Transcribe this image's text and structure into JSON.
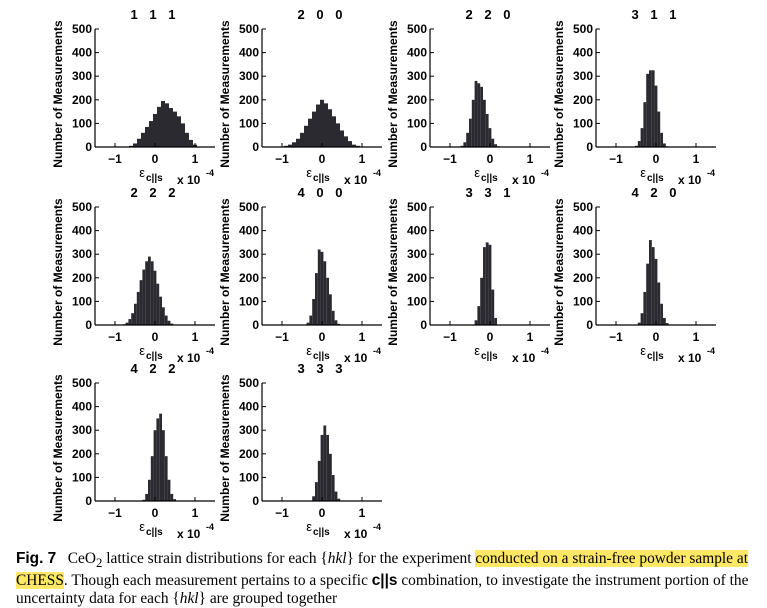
{
  "figure": {
    "label": "Fig. 7",
    "caption": {
      "part1": "CeO",
      "sub": "2",
      "part2": " lattice strain distributions for each {",
      "hkl1": "hkl",
      "part3": "} for the experiment ",
      "highlight": "conducted on a strain-free powder sample at CHESS",
      "part4": ". Though each measurement pertains to a specific ",
      "cs": "c||s",
      "part5": " combination, to investigate the instrument portion of the uncertainty data for each {",
      "hkl2": "hkl",
      "part6": "} are grouped together"
    }
  },
  "chart_data": [
    {
      "type": "bar",
      "title": "1 1 1",
      "ylabel": "Number of Measurements",
      "xlabel": "ε",
      "xlabel_sub": "c||s",
      "x_multiplier": "x 10",
      "x_multiplier_exp": "-4",
      "xlim": [
        -1.5,
        1.5
      ],
      "ylim": [
        0,
        500
      ],
      "xticks": [
        "−1",
        "0",
        "1"
      ],
      "yticks": [
        "0",
        "100",
        "200",
        "300",
        "400",
        "500"
      ],
      "bin_width": 0.1,
      "x": [
        -0.6,
        -0.5,
        -0.4,
        -0.3,
        -0.2,
        -0.1,
        0.0,
        0.1,
        0.2,
        0.3,
        0.4,
        0.5,
        0.6,
        0.7,
        0.8,
        0.9,
        1.0
      ],
      "values": [
        5,
        15,
        35,
        60,
        85,
        110,
        140,
        170,
        195,
        185,
        165,
        150,
        130,
        100,
        60,
        30,
        10
      ]
    },
    {
      "type": "bar",
      "title": "2 0 0",
      "ylabel": "Number of Measurements",
      "xlabel": "ε",
      "xlabel_sub": "c||s",
      "x_multiplier": "x 10",
      "x_multiplier_exp": "-4",
      "xlim": [
        -1.5,
        1.5
      ],
      "ylim": [
        0,
        500
      ],
      "xticks": [
        "−1",
        "0",
        "1"
      ],
      "yticks": [
        "0",
        "100",
        "200",
        "300",
        "400",
        "500"
      ],
      "bin_width": 0.1,
      "x": [
        -0.9,
        -0.8,
        -0.7,
        -0.6,
        -0.5,
        -0.4,
        -0.3,
        -0.2,
        -0.1,
        0.0,
        0.1,
        0.2,
        0.3,
        0.4,
        0.5,
        0.6,
        0.7,
        0.8,
        0.9
      ],
      "values": [
        5,
        10,
        20,
        35,
        60,
        90,
        120,
        150,
        180,
        200,
        185,
        160,
        130,
        100,
        70,
        45,
        25,
        10,
        5
      ]
    },
    {
      "type": "bar",
      "title": "2 2 0",
      "ylabel": "Number of Measurements",
      "xlabel": "ε",
      "xlabel_sub": "c||s",
      "x_multiplier": "x 10",
      "x_multiplier_exp": "-4",
      "xlim": [
        -1.5,
        1.5
      ],
      "ylim": [
        0,
        500
      ],
      "xticks": [
        "−1",
        "0",
        "1"
      ],
      "yticks": [
        "0",
        "100",
        "200",
        "300",
        "400",
        "500"
      ],
      "bin_width": 0.07,
      "x": [
        -0.7,
        -0.63,
        -0.56,
        -0.49,
        -0.42,
        -0.35,
        -0.28,
        -0.21,
        -0.14,
        -0.07,
        0.0,
        0.07,
        0.14,
        0.21
      ],
      "values": [
        5,
        20,
        60,
        120,
        200,
        280,
        270,
        255,
        200,
        140,
        80,
        35,
        12,
        3
      ]
    },
    {
      "type": "bar",
      "title": "3 1 1",
      "ylabel": "Number of Measurements",
      "xlabel": "ε",
      "xlabel_sub": "c||s",
      "x_multiplier": "x 10",
      "x_multiplier_exp": "-4",
      "xlim": [
        -1.5,
        1.5
      ],
      "ylim": [
        0,
        500
      ],
      "xticks": [
        "−1",
        "0",
        "1"
      ],
      "yticks": [
        "0",
        "100",
        "200",
        "300",
        "400",
        "500"
      ],
      "bin_width": 0.07,
      "x": [
        -0.49,
        -0.42,
        -0.35,
        -0.28,
        -0.21,
        -0.14,
        -0.07,
        0.0,
        0.07,
        0.14,
        0.21,
        0.28
      ],
      "values": [
        5,
        25,
        80,
        190,
        310,
        325,
        325,
        260,
        150,
        60,
        15,
        3
      ]
    },
    {
      "type": "bar",
      "title": "2 2 2",
      "ylabel": "Number of Measurements",
      "xlabel": "ε",
      "xlabel_sub": "c||s",
      "x_multiplier": "x 10",
      "x_multiplier_exp": "-4",
      "xlim": [
        -1.5,
        1.5
      ],
      "ylim": [
        0,
        500
      ],
      "xticks": [
        "−1",
        "0",
        "1"
      ],
      "yticks": [
        "0",
        "100",
        "200",
        "300",
        "400",
        "500"
      ],
      "bin_width": 0.07,
      "x": [
        -0.77,
        -0.7,
        -0.63,
        -0.56,
        -0.49,
        -0.42,
        -0.35,
        -0.28,
        -0.21,
        -0.14,
        -0.07,
        0.0,
        0.07,
        0.14,
        0.21,
        0.28,
        0.35,
        0.42,
        0.49
      ],
      "values": [
        3,
        10,
        25,
        50,
        90,
        140,
        190,
        235,
        270,
        290,
        270,
        230,
        175,
        120,
        75,
        40,
        18,
        6,
        2
      ]
    },
    {
      "type": "bar",
      "title": "4 0 0",
      "ylabel": "Number of Measurements",
      "xlabel": "ε",
      "xlabel_sub": "c||s",
      "x_multiplier": "x 10",
      "x_multiplier_exp": "-4",
      "xlim": [
        -1.5,
        1.5
      ],
      "ylim": [
        0,
        500
      ],
      "xticks": [
        "−1",
        "0",
        "1"
      ],
      "yticks": [
        "0",
        "100",
        "200",
        "300",
        "400",
        "500"
      ],
      "bin_width": 0.07,
      "x": [
        -0.35,
        -0.28,
        -0.21,
        -0.14,
        -0.07,
        0.0,
        0.07,
        0.14,
        0.21,
        0.28,
        0.35,
        0.42
      ],
      "values": [
        10,
        40,
        110,
        220,
        320,
        310,
        270,
        200,
        130,
        60,
        20,
        5
      ]
    },
    {
      "type": "bar",
      "title": "3 3 1",
      "ylabel": "Number of Measurements",
      "xlabel": "ε",
      "xlabel_sub": "c||s",
      "x_multiplier": "x 10",
      "x_multiplier_exp": "-4",
      "xlim": [
        -1.5,
        1.5
      ],
      "ylim": [
        0,
        500
      ],
      "xticks": [
        "−1",
        "0",
        "1"
      ],
      "yticks": [
        "0",
        "100",
        "200",
        "300",
        "400",
        "500"
      ],
      "bin_width": 0.07,
      "x": [
        -0.35,
        -0.28,
        -0.21,
        -0.14,
        -0.07,
        0.0,
        0.07,
        0.14
      ],
      "values": [
        20,
        80,
        200,
        330,
        350,
        340,
        150,
        30
      ]
    },
    {
      "type": "bar",
      "title": "4 2 0",
      "ylabel": "Number of Measurements",
      "xlabel": "ε",
      "xlabel_sub": "c||s",
      "x_multiplier": "x 10",
      "x_multiplier_exp": "-4",
      "xlim": [
        -1.5,
        1.5
      ],
      "ylim": [
        0,
        500
      ],
      "xticks": [
        "−1",
        "0",
        "1"
      ],
      "yticks": [
        "0",
        "100",
        "200",
        "300",
        "400",
        "500"
      ],
      "bin_width": 0.07,
      "x": [
        -0.42,
        -0.35,
        -0.28,
        -0.21,
        -0.14,
        -0.07,
        0.0,
        0.07,
        0.14,
        0.21,
        0.28
      ],
      "values": [
        10,
        50,
        140,
        260,
        360,
        330,
        280,
        180,
        90,
        30,
        8
      ]
    },
    {
      "type": "bar",
      "title": "4 2 2",
      "ylabel": "Number of Measurements",
      "xlabel": "ε",
      "xlabel_sub": "c||s",
      "x_multiplier": "x 10",
      "x_multiplier_exp": "-4",
      "xlim": [
        -1.5,
        1.5
      ],
      "ylim": [
        0,
        500
      ],
      "xticks": [
        "−1",
        "0",
        "1"
      ],
      "yticks": [
        "0",
        "100",
        "200",
        "300",
        "400",
        "500"
      ],
      "bin_width": 0.07,
      "x": [
        -0.28,
        -0.21,
        -0.14,
        -0.07,
        0.0,
        0.07,
        0.14,
        0.21,
        0.28,
        0.35,
        0.42,
        0.49
      ],
      "values": [
        5,
        30,
        90,
        190,
        300,
        350,
        370,
        300,
        190,
        90,
        30,
        8
      ]
    },
    {
      "type": "bar",
      "title": "3 3 3",
      "ylabel": "Number of Measurements",
      "xlabel": "ε",
      "xlabel_sub": "c||s",
      "x_multiplier": "x 10",
      "x_multiplier_exp": "-4",
      "xlim": [
        -1.5,
        1.5
      ],
      "ylim": [
        0,
        500
      ],
      "xticks": [
        "−1",
        "0",
        "1"
      ],
      "yticks": [
        "0",
        "100",
        "200",
        "300",
        "400",
        "500"
      ],
      "bin_width": 0.07,
      "x": [
        -0.21,
        -0.14,
        -0.07,
        0.0,
        0.07,
        0.14,
        0.21,
        0.28,
        0.35,
        0.42
      ],
      "values": [
        20,
        80,
        170,
        280,
        320,
        280,
        200,
        110,
        40,
        10
      ]
    }
  ]
}
